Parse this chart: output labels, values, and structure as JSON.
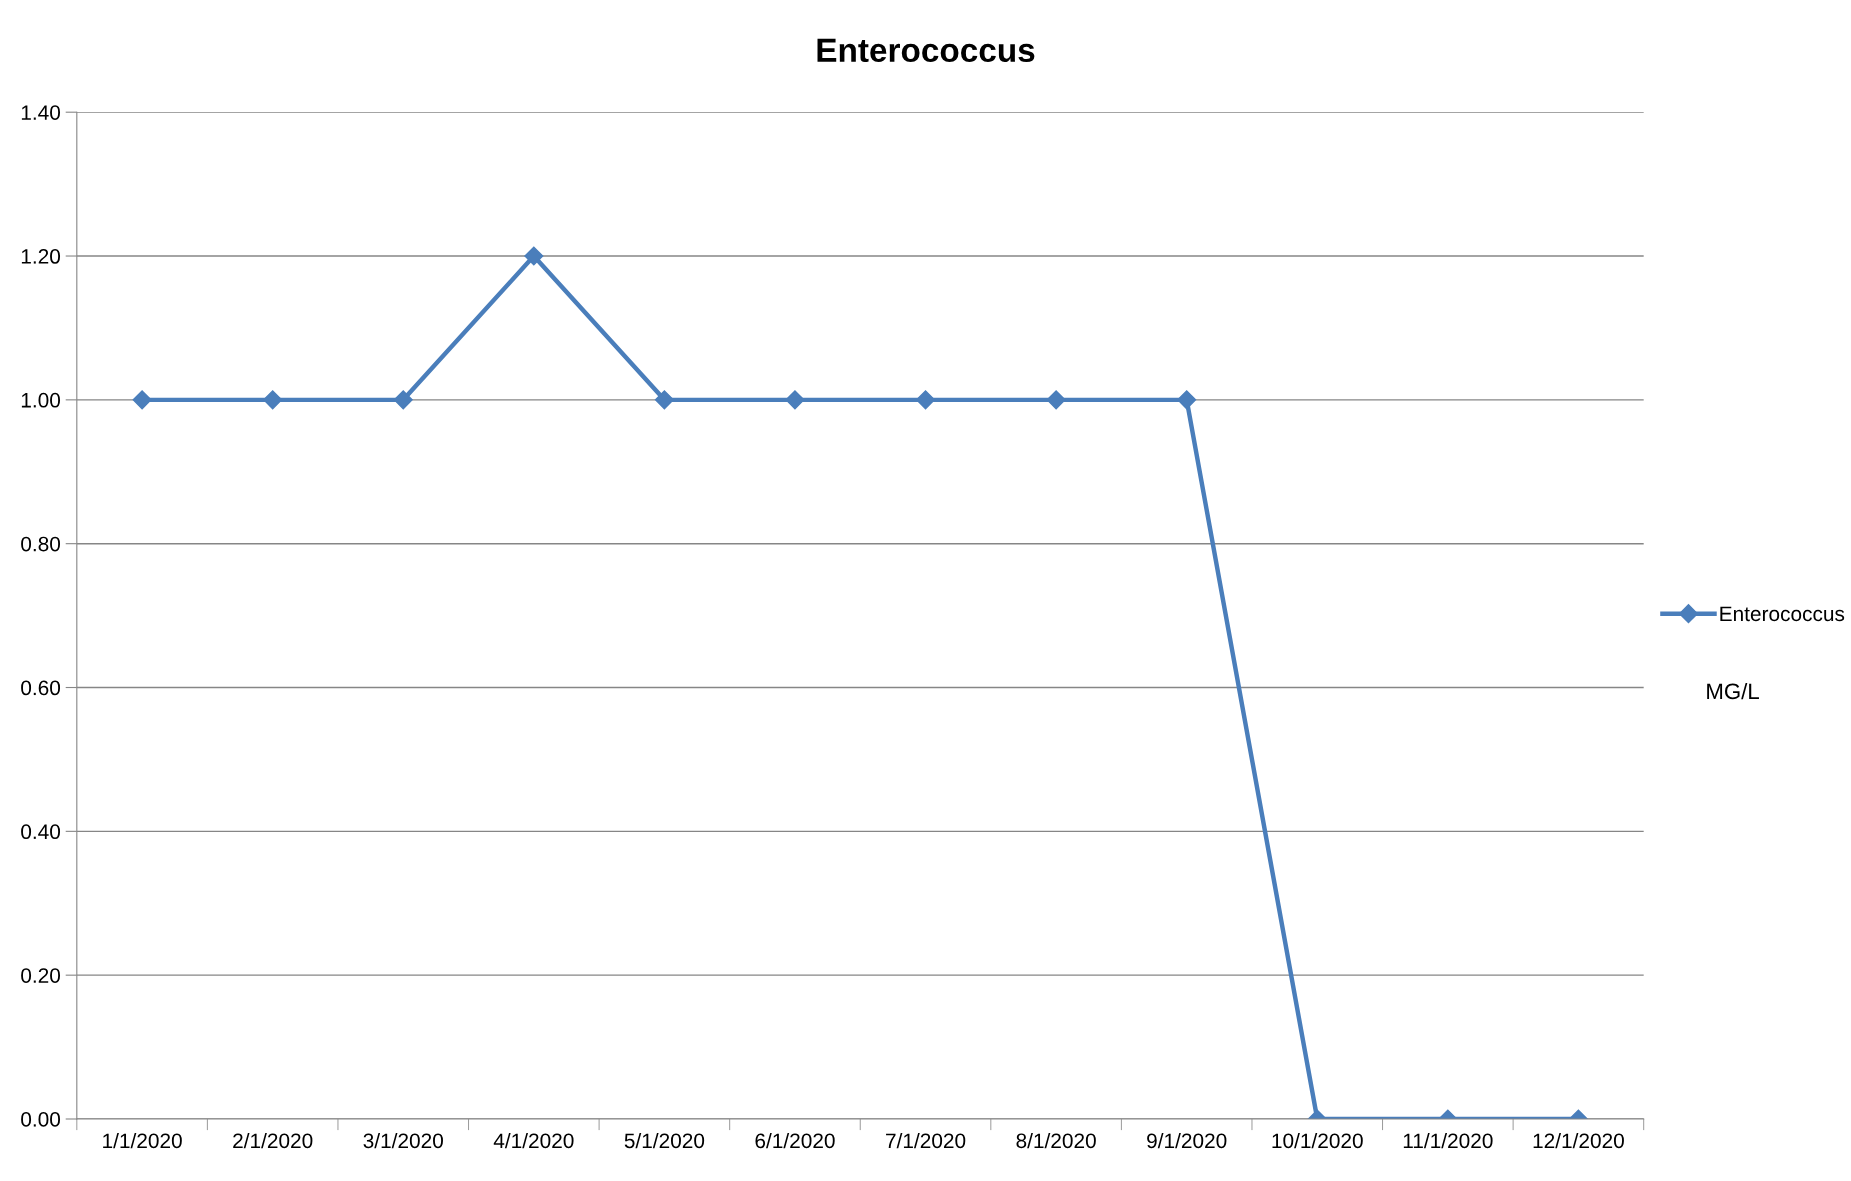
{
  "chart_data": {
    "type": "line",
    "title": "Enterococcus",
    "categories": [
      "1/1/2020",
      "2/1/2020",
      "3/1/2020",
      "4/1/2020",
      "5/1/2020",
      "6/1/2020",
      "7/1/2020",
      "8/1/2020",
      "9/1/2020",
      "10/1/2020",
      "11/1/2020",
      "12/1/2020"
    ],
    "series": [
      {
        "name": "Enterococcus",
        "color": "#4a7ebb",
        "values": [
          1.0,
          1.0,
          1.0,
          1.2,
          1.0,
          1.0,
          1.0,
          1.0,
          1.0,
          0.0,
          0.0,
          0.0
        ]
      }
    ],
    "ylim": [
      0,
      1.4
    ],
    "yticks": [
      {
        "value": 0,
        "label": "0.00"
      },
      {
        "value": 0.2,
        "label": "0.20"
      },
      {
        "value": 0.4,
        "label": "0.40"
      },
      {
        "value": 0.6,
        "label": "0.60"
      },
      {
        "value": 0.8,
        "label": "0.80"
      },
      {
        "value": 1.0,
        "label": "1.00"
      },
      {
        "value": 1.2,
        "label": "1.20"
      },
      {
        "value": 1.4,
        "label": "1.40"
      }
    ],
    "grid": "y",
    "legend": "right",
    "marker": "diamond",
    "line_style": "solid",
    "annotations": [
      "MG/L"
    ]
  }
}
